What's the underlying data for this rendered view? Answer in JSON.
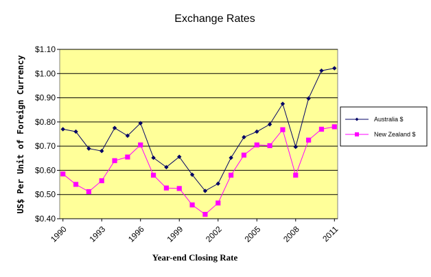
{
  "chart_data": {
    "type": "line",
    "title": "Exchange Rates",
    "xlabel": "Year-end Closing Rate",
    "ylabel": "US$ Per Unit of Foreign Currency",
    "ylim": [
      0.4,
      1.1
    ],
    "yticks": [
      "$0.40",
      "$0.50",
      "$0.60",
      "$0.70",
      "$0.80",
      "$0.90",
      "$1.00",
      "$1.10"
    ],
    "ytick_values": [
      0.4,
      0.5,
      0.6,
      0.7,
      0.8,
      0.9,
      1.0,
      1.1
    ],
    "x": [
      1990,
      1991,
      1992,
      1993,
      1994,
      1995,
      1996,
      1997,
      1998,
      1999,
      2000,
      2001,
      2002,
      2003,
      2004,
      2005,
      2006,
      2007,
      2008,
      2009,
      2010,
      2011
    ],
    "xtick_labels": [
      "1990",
      "1993",
      "1996",
      "1999",
      "2002",
      "2005",
      "2008",
      "2011"
    ],
    "xtick_values": [
      1990,
      1993,
      1996,
      1999,
      2002,
      2005,
      2008,
      2011
    ],
    "grid": true,
    "legend_position": "right",
    "plot_background": "#ffff99",
    "series": [
      {
        "name": "Australia $",
        "color": "#000066",
        "marker": "diamond",
        "values": [
          0.77,
          0.76,
          0.69,
          0.68,
          0.775,
          0.743,
          0.795,
          0.652,
          0.613,
          0.656,
          0.582,
          0.515,
          0.545,
          0.652,
          0.737,
          0.76,
          0.79,
          0.875,
          0.697,
          0.897,
          1.012,
          1.022
        ]
      },
      {
        "name": "New Zealand $",
        "color": "#ff00ff",
        "marker": "square",
        "values": [
          0.585,
          0.542,
          0.512,
          0.557,
          0.64,
          0.655,
          0.705,
          0.58,
          0.527,
          0.525,
          0.457,
          0.418,
          0.465,
          0.58,
          0.663,
          0.705,
          0.702,
          0.768,
          0.58,
          0.725,
          0.77,
          0.78
        ]
      }
    ]
  }
}
